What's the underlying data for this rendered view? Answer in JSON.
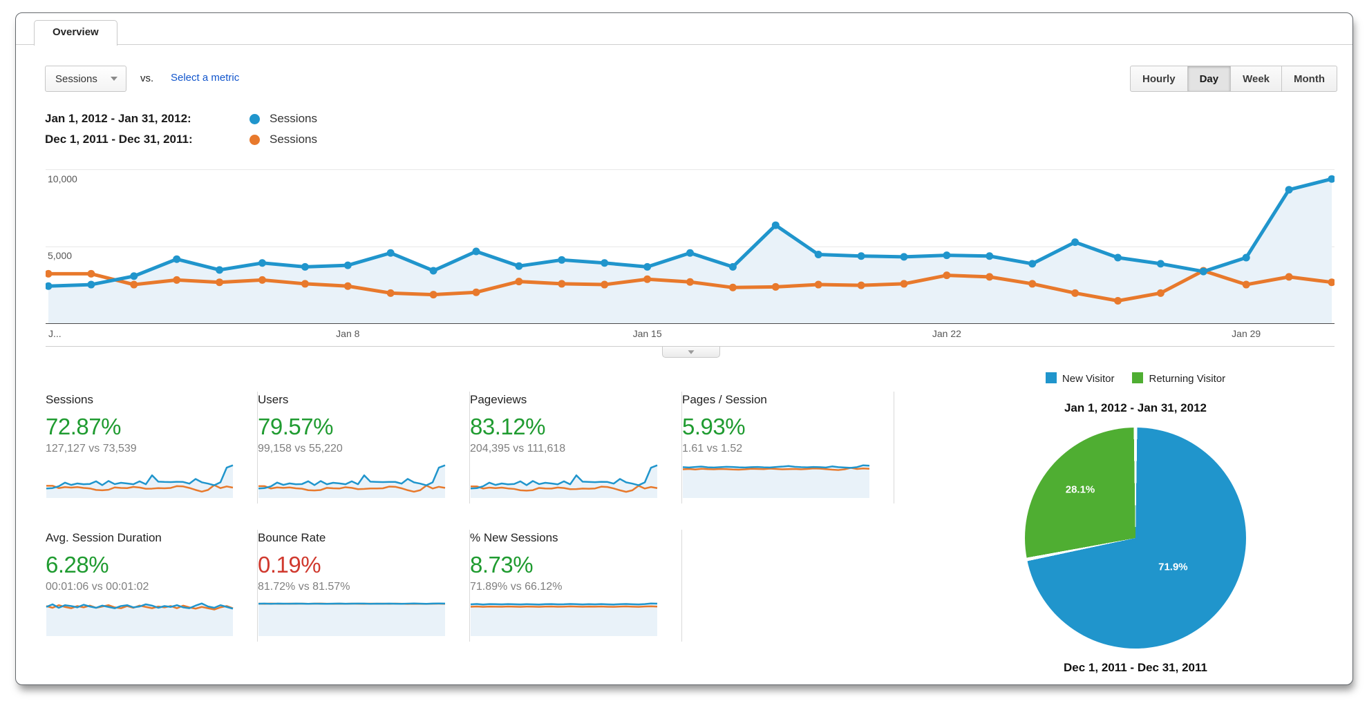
{
  "tab": {
    "label": "Overview"
  },
  "toolbar": {
    "metric_select": {
      "value": "Sessions"
    },
    "vs_label": "vs.",
    "select_metric_link": "Select a metric",
    "granularity": {
      "options": [
        "Hourly",
        "Day",
        "Week",
        "Month"
      ],
      "selected": "Day"
    }
  },
  "series_legend": [
    {
      "date_range": "Jan 1, 2012 - Jan 31, 2012:",
      "metric": "Sessions",
      "color": "#2095cc"
    },
    {
      "date_range": "Dec 1, 2011 - Dec 31, 2011:",
      "metric": "Sessions",
      "color": "#e8792c"
    }
  ],
  "chart_data": [
    {
      "type": "line",
      "title": "Sessions comparison by day",
      "ylim": [
        0,
        12000
      ],
      "yticks": [
        {
          "label": "5,000",
          "value": 5000
        },
        {
          "label": "10,000",
          "value": 10000
        }
      ],
      "xticks": [
        {
          "label": "J...",
          "i": 0
        },
        {
          "label": "Jan 8",
          "i": 7
        },
        {
          "label": "Jan 15",
          "i": 14
        },
        {
          "label": "Jan 22",
          "i": 21
        },
        {
          "label": "Jan 29",
          "i": 28
        }
      ],
      "grid": true,
      "fill_under_first": true,
      "fill_color": "#e9f2f9",
      "series": [
        {
          "name": "Sessions (Jan 1, 2012 - Jan 31, 2012)",
          "color": "#2095cc",
          "values": [
            2450,
            2550,
            3100,
            4200,
            3500,
            3950,
            3700,
            3800,
            4600,
            3450,
            4700,
            3750,
            4150,
            3950,
            3700,
            4600,
            3700,
            6400,
            4500,
            4400,
            4350,
            4450,
            4400,
            3900,
            5300,
            4300,
            3900,
            3400,
            4300,
            8700,
            9400
          ]
        },
        {
          "name": "Sessions (Dec 1, 2011 - Dec 31, 2011)",
          "color": "#e8792c",
          "values": [
            3250,
            3250,
            2550,
            2850,
            2700,
            2850,
            2600,
            2450,
            2000,
            1900,
            2050,
            2750,
            2600,
            2550,
            2900,
            2720,
            2360,
            2400,
            2550,
            2500,
            2600,
            3150,
            3050,
            2600,
            2000,
            1500,
            2000,
            3450,
            2550,
            3050,
            2700
          ]
        }
      ]
    },
    {
      "type": "pie",
      "title": "Jan 1, 2012 - Jan 31, 2012",
      "footer_label": "Dec 1, 2011 - Dec 31, 2011",
      "legend_position": "top",
      "slices": [
        {
          "label": "New Visitor",
          "value": 71.9,
          "pct_label": "71.9%",
          "color": "#2095cc"
        },
        {
          "label": "Returning Visitor",
          "value": 28.1,
          "pct_label": "28.1%",
          "color": "#4fae32"
        }
      ]
    }
  ],
  "metrics": {
    "cards": [
      {
        "title": "Sessions",
        "change": "72.87%",
        "change_color": "#1f9b30",
        "values": "127,127 vs 73,539",
        "spark": {
          "blue": [
            2450,
            2550,
            3100,
            4200,
            3500,
            3950,
            3700,
            3800,
            4600,
            3450,
            4700,
            3750,
            4150,
            3950,
            3700,
            4600,
            3700,
            6400,
            4500,
            4400,
            4350,
            4450,
            4400,
            3900,
            5300,
            4300,
            3900,
            3400,
            4300,
            8700,
            9400
          ],
          "orange": [
            3250,
            3250,
            2550,
            2850,
            2700,
            2850,
            2600,
            2450,
            2000,
            1900,
            2050,
            2750,
            2600,
            2550,
            2900,
            2720,
            2360,
            2400,
            2550,
            2500,
            2600,
            3150,
            3050,
            2600,
            2000,
            1500,
            2000,
            3450,
            2550,
            3050,
            2700
          ]
        }
      },
      {
        "title": "Users",
        "change": "79.57%",
        "change_color": "#1f9b30",
        "values": "99,158 vs 55,220",
        "spark": {
          "blue": [
            1900,
            2000,
            2400,
            3300,
            2750,
            3100,
            2900,
            2950,
            3600,
            2700,
            3650,
            2900,
            3250,
            3100,
            2900,
            3600,
            2900,
            5000,
            3500,
            3450,
            3400,
            3450,
            3450,
            3050,
            4150,
            3350,
            3050,
            2650,
            3350,
            6800,
            7350
          ],
          "orange": [
            2450,
            2450,
            1900,
            2150,
            2050,
            2150,
            1950,
            1850,
            1500,
            1450,
            1550,
            2050,
            1950,
            1900,
            2200,
            2050,
            1750,
            1800,
            1900,
            1900,
            1950,
            2350,
            2300,
            1950,
            1500,
            1150,
            1500,
            2600,
            1900,
            2300,
            2050
          ]
        }
      },
      {
        "title": "Pageviews",
        "change": "83.12%",
        "change_color": "#1f9b30",
        "values": "204,395 vs 111,618",
        "spark": {
          "blue": [
            3950,
            4100,
            5000,
            6750,
            5650,
            6350,
            5950,
            6100,
            7400,
            5550,
            7550,
            6050,
            6700,
            6350,
            5950,
            7400,
            5950,
            10300,
            7250,
            7100,
            7000,
            7150,
            7100,
            6300,
            8550,
            6900,
            6300,
            5500,
            6900,
            14000,
            15150
          ],
          "orange": [
            4950,
            4950,
            3900,
            4350,
            4100,
            4350,
            3950,
            3700,
            3050,
            2900,
            3100,
            4200,
            3950,
            3900,
            4400,
            4150,
            3600,
            3650,
            3900,
            3800,
            3950,
            4800,
            4650,
            3950,
            3050,
            2300,
            3050,
            5250,
            3900,
            4650,
            4100
          ]
        }
      },
      {
        "title": "Pages / Session",
        "change": "5.93%",
        "change_color": "#1f9b30",
        "values": "1.61 vs 1.52",
        "spark": {
          "blue": [
            1.62,
            1.6,
            1.63,
            1.65,
            1.61,
            1.6,
            1.62,
            1.64,
            1.63,
            1.61,
            1.6,
            1.62,
            1.63,
            1.61,
            1.6,
            1.63,
            1.65,
            1.68,
            1.64,
            1.62,
            1.61,
            1.63,
            1.62,
            1.6,
            1.66,
            1.62,
            1.6,
            1.58,
            1.62,
            1.72,
            1.7
          ],
          "orange": [
            1.5,
            1.52,
            1.49,
            1.53,
            1.51,
            1.5,
            1.52,
            1.51,
            1.49,
            1.48,
            1.5,
            1.53,
            1.52,
            1.51,
            1.54,
            1.52,
            1.5,
            1.51,
            1.52,
            1.5,
            1.52,
            1.55,
            1.54,
            1.51,
            1.48,
            1.46,
            1.5,
            1.58,
            1.52,
            1.55,
            1.53
          ]
        }
      },
      {
        "title": "Avg. Session Duration",
        "change": "6.28%",
        "change_color": "#1f9b30",
        "values": "00:01:06 vs 00:01:02",
        "spark": {
          "blue": [
            64,
            70,
            62,
            68,
            66,
            63,
            69,
            65,
            62,
            67,
            64,
            61,
            66,
            68,
            63,
            65,
            70,
            67,
            62,
            66,
            64,
            68,
            63,
            61,
            67,
            72,
            65,
            62,
            68,
            64,
            60
          ],
          "orange": [
            66,
            62,
            68,
            64,
            61,
            66,
            63,
            67,
            62,
            65,
            68,
            63,
            61,
            66,
            62,
            67,
            64,
            61,
            65,
            63,
            66,
            61,
            67,
            63,
            60,
            64,
            61,
            58,
            63,
            66,
            61
          ]
        }
      },
      {
        "title": "Bounce Rate",
        "change": "0.19%",
        "change_color": "#d0392e",
        "values": "81.72% vs 81.57%",
        "spark": {
          "blue": [
            81.5,
            82.0,
            81.2,
            81.8,
            81.6,
            81.4,
            81.9,
            81.7,
            81.3,
            81.8,
            81.5,
            81.2,
            81.7,
            81.9,
            81.4,
            81.6,
            82.0,
            81.8,
            81.3,
            81.7,
            81.5,
            81.9,
            81.4,
            81.2,
            81.8,
            82.1,
            81.6,
            81.3,
            81.9,
            82.2,
            82.0
          ],
          "orange": [
            81.6,
            81.3,
            81.9,
            81.5,
            81.2,
            81.7,
            81.4,
            81.8,
            81.3,
            81.6,
            81.9,
            81.4,
            81.2,
            81.7,
            81.3,
            81.8,
            81.5,
            81.2,
            81.6,
            81.4,
            81.7,
            81.2,
            81.8,
            81.4,
            81.1,
            81.5,
            81.2,
            80.9,
            81.4,
            81.7,
            81.2
          ]
        }
      },
      {
        "title": "% New Sessions",
        "change": "8.73%",
        "change_color": "#1f9b30",
        "values": "71.89% vs 66.12%",
        "spark": {
          "blue": [
            71.5,
            72.2,
            71.0,
            72.0,
            71.8,
            71.4,
            72.1,
            71.7,
            71.2,
            71.9,
            71.5,
            71.1,
            71.8,
            72.0,
            71.4,
            71.6,
            72.2,
            71.9,
            71.3,
            71.8,
            71.5,
            72.0,
            71.4,
            71.1,
            71.9,
            72.3,
            71.6,
            71.2,
            72.0,
            73.5,
            73.0
          ],
          "orange": [
            65.8,
            66.4,
            65.5,
            66.2,
            66.0,
            65.7,
            66.3,
            66.0,
            65.6,
            66.2,
            65.9,
            65.5,
            66.1,
            66.3,
            65.8,
            66.0,
            66.5,
            66.2,
            65.7,
            66.1,
            65.9,
            66.4,
            65.8,
            65.5,
            66.2,
            66.6,
            66.0,
            65.6,
            66.3,
            66.8,
            66.2
          ]
        }
      }
    ]
  },
  "colors": {
    "blue": "#2095cc",
    "orange": "#e8792c",
    "green": "#4fae32",
    "up_green": "#1f9b30",
    "down_red": "#d0392e",
    "area_fill": "#e9f2f9"
  }
}
